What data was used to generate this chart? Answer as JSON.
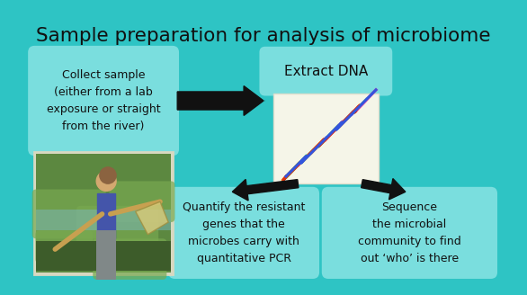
{
  "background_color": "#2EC4C4",
  "title": "Sample preparation for analysis of microbiome",
  "title_color": "#111111",
  "title_fontsize": 15.5,
  "box_color_light": "#7ADEDE",
  "box_color_dna_bg": "#F5F5E8",
  "box1_text": "Collect sample\n(either from a lab\nexposure or straight\nfrom the river)",
  "box2_text": "Extract DNA",
  "box3_text": "Quantify the resistant\ngenes that the\nmicrobes carry with\nquantitative PCR",
  "box4_text": "Sequence\nthe microbial\ncommunity to find\nout ‘who’ is there",
  "arrow_color": "#111111",
  "text_color": "#111111",
  "font_size_box1": 9.0,
  "font_size_box2": 11.0,
  "font_size_box34": 9.0,
  "outer_edge_color": "#1AACAC"
}
